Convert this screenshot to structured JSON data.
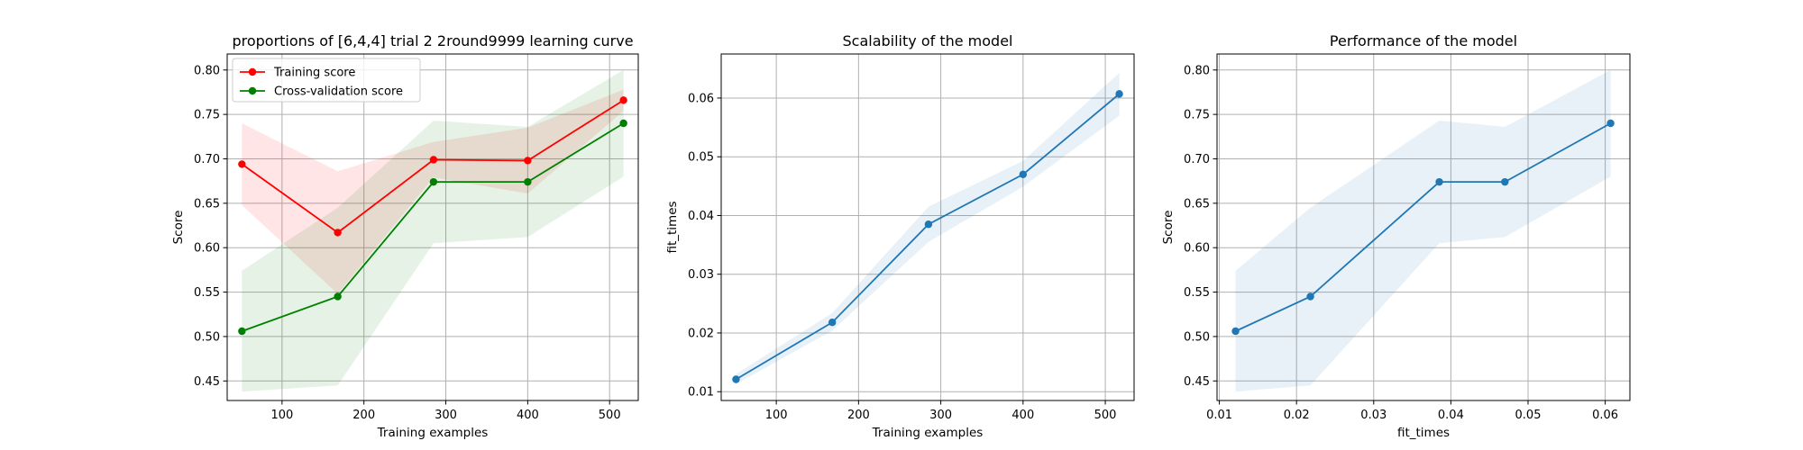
{
  "chart_data": [
    {
      "type": "line",
      "title": "proportions of [6,4,4] trial 2 2round9999 learning curve",
      "xlabel": "Training examples",
      "ylabel": "Score",
      "xlim": [
        33,
        535
      ],
      "ylim": [
        0.428,
        0.818
      ],
      "xticks": [
        100,
        200,
        300,
        400,
        500
      ],
      "xtick_labels": [
        "100",
        "200",
        "300",
        "400",
        "500"
      ],
      "yticks": [
        0.45,
        0.5,
        0.55,
        0.6,
        0.65,
        0.7,
        0.75,
        0.8
      ],
      "ytick_labels": [
        "0.45",
        "0.50",
        "0.55",
        "0.60",
        "0.65",
        "0.70",
        "0.75",
        "0.80"
      ],
      "grid": true,
      "legend": "upper left",
      "x": [
        51,
        168,
        285,
        400,
        517
      ],
      "series": [
        {
          "name": "Training score",
          "color": "#ff0000",
          "values": [
            0.694,
            0.617,
            0.699,
            0.698,
            0.766
          ],
          "lower": [
            0.648,
            0.548,
            0.679,
            0.661,
            0.754
          ],
          "upper": [
            0.74,
            0.686,
            0.719,
            0.735,
            0.778
          ]
        },
        {
          "name": "Cross-validation score",
          "color": "#008000",
          "values": [
            0.506,
            0.545,
            0.674,
            0.674,
            0.74
          ],
          "lower": [
            0.438,
            0.445,
            0.605,
            0.612,
            0.68
          ],
          "upper": [
            0.574,
            0.645,
            0.743,
            0.736,
            0.8
          ]
        }
      ]
    },
    {
      "type": "line",
      "title": "Scalability of the model",
      "xlabel": "Training examples",
      "ylabel": "fit_times",
      "xlim": [
        33,
        535
      ],
      "ylim": [
        0.0085,
        0.0675
      ],
      "xticks": [
        100,
        200,
        300,
        400,
        500
      ],
      "xtick_labels": [
        "100",
        "200",
        "300",
        "400",
        "500"
      ],
      "yticks": [
        0.01,
        0.02,
        0.03,
        0.04,
        0.05,
        0.06
      ],
      "ytick_labels": [
        "0.01",
        "0.02",
        "0.03",
        "0.04",
        "0.05",
        "0.06"
      ],
      "grid": true,
      "x": [
        51,
        168,
        285,
        400,
        517
      ],
      "series": [
        {
          "color": "#1f77b4",
          "values": [
            0.0121,
            0.0218,
            0.0385,
            0.047,
            0.0607
          ],
          "lower": [
            0.0113,
            0.0204,
            0.0355,
            0.0449,
            0.057
          ],
          "upper": [
            0.013,
            0.0234,
            0.0415,
            0.0493,
            0.0643
          ]
        }
      ]
    },
    {
      "type": "line",
      "title": "Performance of the model",
      "xlabel": "fit_times",
      "ylabel": "Score",
      "xlim": [
        0.0097,
        0.0632
      ],
      "ylim": [
        0.428,
        0.818
      ],
      "xticks": [
        0.01,
        0.02,
        0.03,
        0.04,
        0.05,
        0.06
      ],
      "xtick_labels": [
        "0.01",
        "0.02",
        "0.03",
        "0.04",
        "0.05",
        "0.06"
      ],
      "yticks": [
        0.45,
        0.5,
        0.55,
        0.6,
        0.65,
        0.7,
        0.75,
        0.8
      ],
      "ytick_labels": [
        "0.45",
        "0.50",
        "0.55",
        "0.60",
        "0.65",
        "0.70",
        "0.75",
        "0.80"
      ],
      "grid": true,
      "x": [
        0.0121,
        0.0218,
        0.0385,
        0.047,
        0.0607
      ],
      "series": [
        {
          "color": "#1f77b4",
          "values": [
            0.506,
            0.545,
            0.674,
            0.674,
            0.74
          ],
          "lower": [
            0.438,
            0.445,
            0.605,
            0.612,
            0.68
          ],
          "upper": [
            0.574,
            0.645,
            0.743,
            0.736,
            0.8
          ]
        }
      ]
    }
  ]
}
